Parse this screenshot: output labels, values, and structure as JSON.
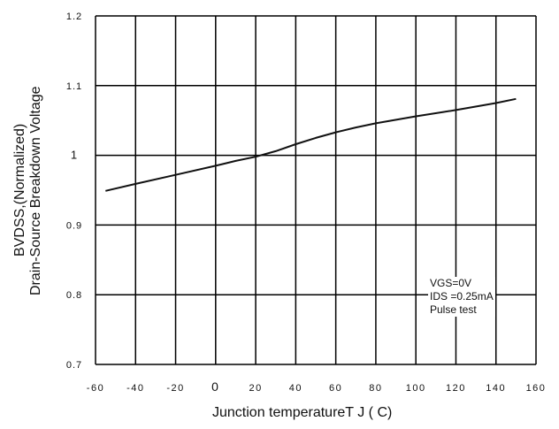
{
  "chart_data": {
    "type": "line",
    "y_label_top": "BVDSS,(Normalized)",
    "y_label_bottom": "Drain-Source Breakdown Voltage",
    "x_label": "Junction temperatureT J ( C)",
    "xticks": [
      "-60",
      "-40",
      "-20",
      "0",
      "20",
      "40",
      "60",
      "80",
      "100",
      "120",
      "140",
      "160"
    ],
    "yticks": [
      "0.7",
      "0.8",
      "0.9",
      "1",
      "1.1",
      "1.2"
    ],
    "xlim": [
      -60,
      160
    ],
    "ylim": [
      0.7,
      1.2
    ],
    "grid": true,
    "series": [
      {
        "x": [
          -55,
          -40,
          -20,
          0,
          10,
          20,
          30,
          40,
          50,
          60,
          70,
          80,
          100,
          120,
          140,
          150
        ],
        "y": [
          0.949,
          0.959,
          0.972,
          0.985,
          0.992,
          0.998,
          1.006,
          1.016,
          1.025,
          1.033,
          1.04,
          1.046,
          1.056,
          1.065,
          1.075,
          1.081
        ]
      }
    ],
    "annotation": {
      "line1": "VGS=0V",
      "line2": "IDS =0.25mA",
      "line3": "Pulse test"
    }
  },
  "colors": {
    "line": "#111111",
    "grid": "#000000"
  }
}
